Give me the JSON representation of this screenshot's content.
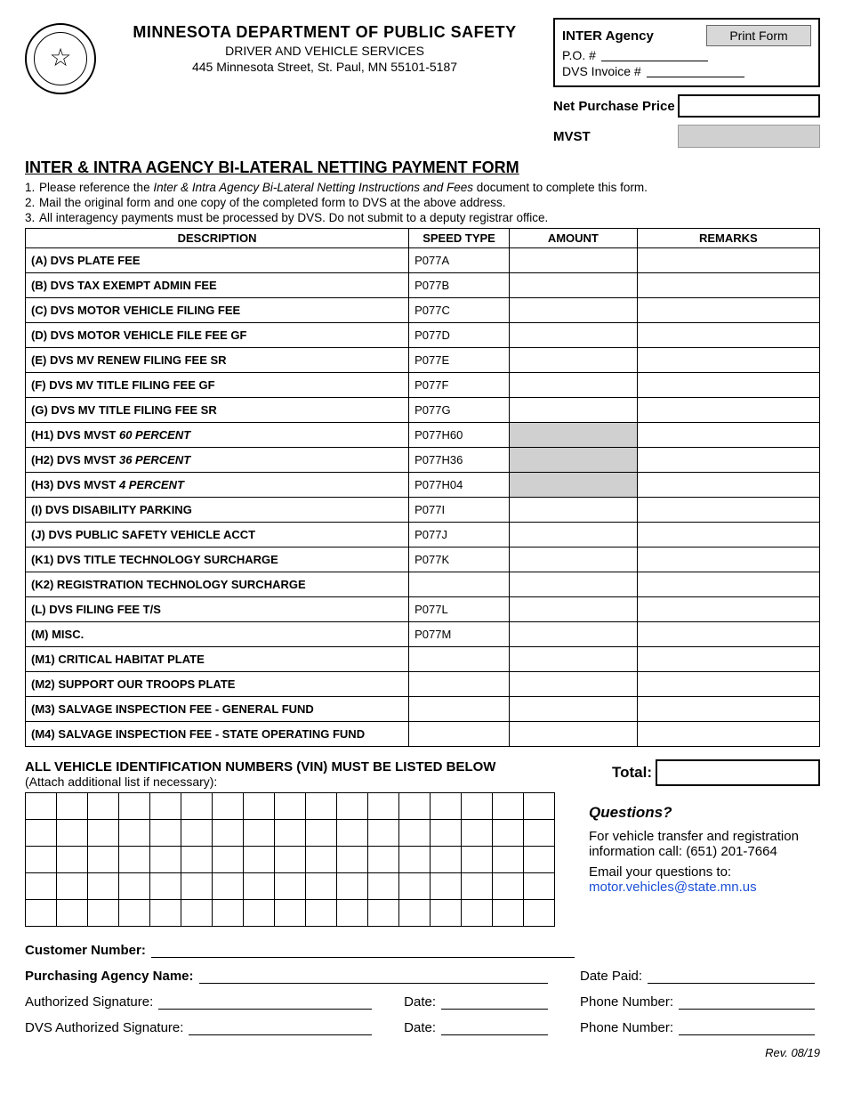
{
  "header": {
    "dept": "MINNESOTA  DEPARTMENT OF PUBLIC SAFETY",
    "division": "DRIVER AND VEHICLE SERVICES",
    "address": "445 Minnesota Street, St. Paul, MN 55101-5187"
  },
  "topbox": {
    "inter_agency": "INTER Agency",
    "print": "Print Form",
    "po_label": "P.O. #",
    "invoice_label": "DVS Invoice #",
    "npp_label": "Net Purchase Price",
    "mvst_label": "MVST"
  },
  "form_title": "INTER & INTRA AGENCY BI-LATERAL NETTING PAYMENT FORM",
  "instructions": {
    "i1a": "Please reference the ",
    "i1b": "Inter & Intra Agency Bi-Lateral Netting Instructions and Fees",
    "i1c": " document to complete this form.",
    "i2": "Mail the original form and one copy of the completed form to DVS at the above address.",
    "i3": "All interagency payments must be processed by DVS. Do not submit to a deputy registrar office."
  },
  "table": {
    "h_desc": "DESCRIPTION",
    "h_speed": "SPEED TYPE",
    "h_amount": "AMOUNT",
    "h_remarks": "REMARKS",
    "rows": [
      {
        "desc": "(A) DVS PLATE FEE",
        "speed": "P077A",
        "gray": false
      },
      {
        "desc": "(B) DVS TAX EXEMPT ADMIN FEE",
        "speed": "P077B",
        "gray": false
      },
      {
        "desc": "(C) DVS MOTOR VEHICLE FILING FEE",
        "speed": "P077C",
        "gray": false
      },
      {
        "desc": "(D) DVS MOTOR VEHICLE FILE FEE GF",
        "speed": "P077D",
        "gray": false
      },
      {
        "desc": "(E) DVS MV RENEW FILING FEE SR",
        "speed": "P077E",
        "gray": false
      },
      {
        "desc": "(F) DVS MV TITLE FILING FEE GF",
        "speed": "P077F",
        "gray": false
      },
      {
        "desc": "(G) DVS MV TITLE FILING FEE SR",
        "speed": "P077G",
        "gray": false
      },
      {
        "desc": "(H1) DVS MVST <i>60 PERCENT</i>",
        "speed": "P077H60",
        "gray": true
      },
      {
        "desc": "(H2) DVS MVST <i>36 PERCENT</i>",
        "speed": "P077H36",
        "gray": true
      },
      {
        "desc": "(H3) DVS MVST <i>4 PERCENT</i>",
        "speed": "P077H04",
        "gray": true
      },
      {
        "desc": "(I) DVS DISABILITY PARKING",
        "speed": "P077I",
        "gray": false
      },
      {
        "desc": "(J) DVS PUBLIC SAFETY VEHICLE ACCT",
        "speed": "P077J",
        "gray": false
      },
      {
        "desc": "(K1) DVS TITLE TECHNOLOGY SURCHARGE",
        "speed": "P077K",
        "gray": false
      },
      {
        "desc": "(K2) REGISTRATION TECHNOLOGY SURCHARGE",
        "speed": "",
        "gray": false
      },
      {
        "desc": "(L) DVS FILING FEE T/S",
        "speed": "P077L",
        "gray": false
      },
      {
        "desc": "(M) MISC.",
        "speed": "P077M",
        "gray": false
      },
      {
        "desc": "(M1) CRITICAL HABITAT PLATE",
        "speed": "",
        "gray": false
      },
      {
        "desc": "(M2) SUPPORT OUR TROOPS PLATE",
        "speed": "",
        "gray": false
      },
      {
        "desc": "(M3) SALVAGE INSPECTION FEE - GENERAL FUND",
        "speed": "",
        "gray": false
      },
      {
        "desc": "(M4) SALVAGE INSPECTION FEE - STATE OPERATING FUND",
        "speed": "",
        "gray": false
      }
    ]
  },
  "vin": {
    "title": "ALL VEHICLE IDENTIFICATION NUMBERS (VIN) MUST BE LISTED BELOW",
    "sub": "(Attach additional list if necessary):",
    "rows": 5,
    "cols": 17
  },
  "total_label": "Total:",
  "questions": {
    "title": "Questions?",
    "line1": "For vehicle transfer and registration information call: (651) 201-7664",
    "line2": "Email your questions to:",
    "email": "motor.vehicles@state.mn.us"
  },
  "sig": {
    "cust": "Customer Number:",
    "agency": "Purchasing Agency Name:",
    "auth": "Authorized Signature:",
    "dvs": "DVS Authorized Signature:",
    "date": "Date:",
    "date_paid": "Date Paid:",
    "phone": "Phone Number:"
  },
  "rev": "Rev. 08/19"
}
